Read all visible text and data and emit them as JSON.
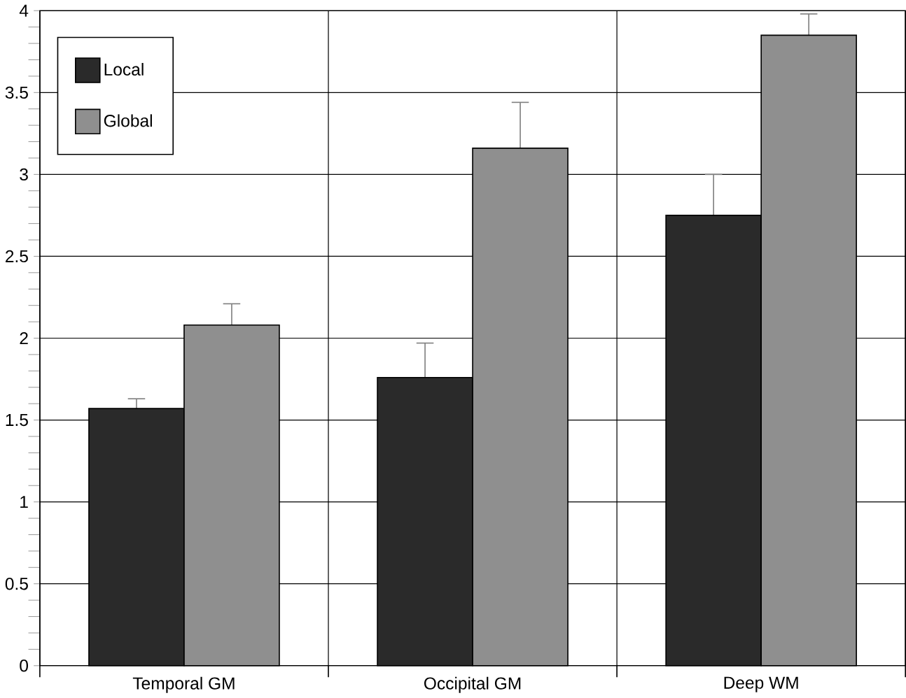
{
  "chart_data": {
    "type": "bar",
    "categories": [
      "Temporal GM",
      "Occipital GM",
      "Deep WM"
    ],
    "series": [
      {
        "name": "Local",
        "color": "#2a2a2a",
        "values": [
          1.57,
          1.76,
          2.75
        ],
        "errors": [
          0.06,
          0.21,
          0.25
        ]
      },
      {
        "name": "Global",
        "color": "#8f8f8f",
        "values": [
          2.08,
          3.16,
          3.85
        ],
        "errors": [
          0.13,
          0.28,
          0.13
        ]
      }
    ],
    "ylim": [
      0,
      4
    ],
    "yticks": [
      0,
      0.5,
      1,
      1.5,
      2,
      2.5,
      3,
      3.5,
      4
    ],
    "grid": true,
    "legend": "top left"
  }
}
